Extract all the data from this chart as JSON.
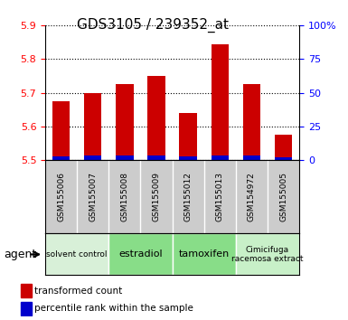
{
  "title": "GDS3105 / 239352_at",
  "samples": [
    "GSM155006",
    "GSM155007",
    "GSM155008",
    "GSM155009",
    "GSM155012",
    "GSM155013",
    "GSM154972",
    "GSM155005"
  ],
  "transformed_counts": [
    5.675,
    5.7,
    5.725,
    5.75,
    5.64,
    5.845,
    5.725,
    5.575
  ],
  "percentile_ranks": [
    2.5,
    3.5,
    3.5,
    3.5,
    3.0,
    3.5,
    3.5,
    2.0
  ],
  "ylim_left": [
    5.5,
    5.9
  ],
  "ylim_right": [
    0,
    100
  ],
  "yticks_left": [
    5.5,
    5.6,
    5.7,
    5.8,
    5.9
  ],
  "yticks_right": [
    0,
    25,
    50,
    75,
    100
  ],
  "ytick_labels_right": [
    "0",
    "25",
    "50",
    "75",
    "100%"
  ],
  "bar_width": 0.55,
  "red_color": "#cc0000",
  "blue_color": "#0000cc",
  "agent_groups": [
    {
      "label": "solvent control",
      "start": 0,
      "end": 2,
      "color": "#d8f0d8",
      "fontsize": 6.5
    },
    {
      "label": "estradiol",
      "start": 2,
      "end": 4,
      "color": "#88dd88",
      "fontsize": 8
    },
    {
      "label": "tamoxifen",
      "start": 4,
      "end": 6,
      "color": "#88dd88",
      "fontsize": 8
    },
    {
      "label": "Cimicifuga\nracemosa extract",
      "start": 6,
      "end": 8,
      "color": "#c8f0c8",
      "fontsize": 6.5
    }
  ],
  "bar_base": 5.5,
  "background_color": "#ffffff",
  "plot_bg": "#ffffff",
  "xtick_bg": "#cccccc",
  "legend_red_label": "transformed count",
  "legend_blue_label": "percentile rank within the sample",
  "agent_label": "agent"
}
